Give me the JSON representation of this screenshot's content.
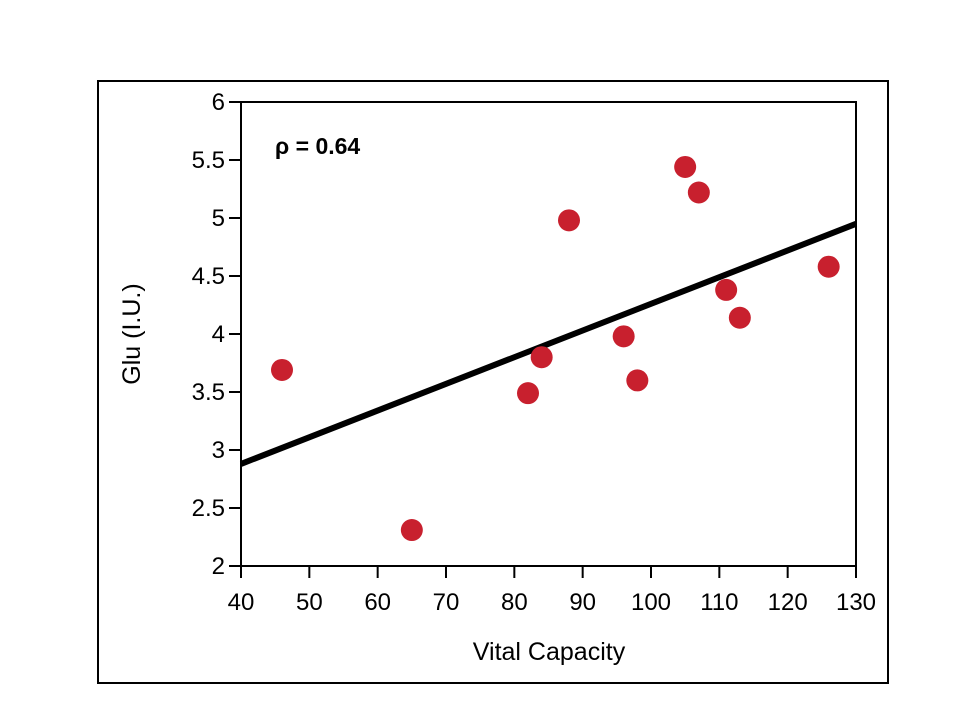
{
  "chart_data": {
    "type": "scatter",
    "title": "",
    "xlabel": "Vital Capacity",
    "ylabel": "Glu (I.U.)",
    "xlim": [
      40,
      130
    ],
    "ylim": [
      2,
      6
    ],
    "x_ticks": [
      "40",
      "50",
      "60",
      "70",
      "80",
      "90",
      "100",
      "110",
      "120",
      "130"
    ],
    "y_ticks": [
      "2",
      "2.5",
      "3",
      "3.5",
      "4",
      "4.5",
      "5",
      "5.5",
      "6"
    ],
    "annotation": "ρ = 0.64",
    "grid": false,
    "legend": "none",
    "point_color": "#c8202e",
    "line_color": "#000000",
    "points": [
      {
        "x": 46,
        "y": 3.69
      },
      {
        "x": 65,
        "y": 2.31
      },
      {
        "x": 82,
        "y": 3.49
      },
      {
        "x": 84,
        "y": 3.8
      },
      {
        "x": 88,
        "y": 4.98
      },
      {
        "x": 96,
        "y": 3.98
      },
      {
        "x": 98,
        "y": 3.6
      },
      {
        "x": 105,
        "y": 5.44
      },
      {
        "x": 107,
        "y": 5.22
      },
      {
        "x": 111,
        "y": 4.38
      },
      {
        "x": 113,
        "y": 4.14
      },
      {
        "x": 126,
        "y": 4.58
      }
    ],
    "trendline": {
      "x": [
        40,
        130
      ],
      "y": [
        2.88,
        4.95
      ]
    }
  }
}
